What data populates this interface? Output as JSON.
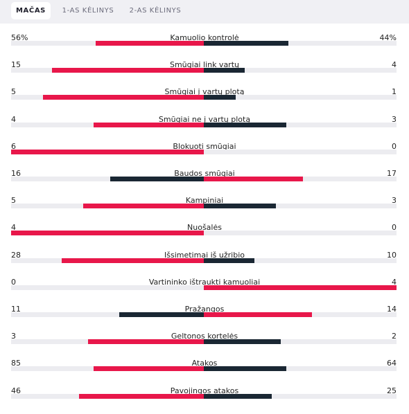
{
  "tabs": [
    "MAČAS",
    "1-AS KĖLINYS",
    "2-AS KĖLINYS"
  ],
  "active_tab": 0,
  "colors": {
    "leader": "#e8174a",
    "trailer": "#1a2733",
    "track": "#ececf0"
  },
  "stats": [
    {
      "label": "Kamuolio kontrolė",
      "home": "56%",
      "away": "44%",
      "home_val": 56,
      "away_val": 44
    },
    {
      "label": "Smūgiai link vartų",
      "home": "15",
      "away": "4",
      "home_val": 15,
      "away_val": 4
    },
    {
      "label": "Smūgiai į vartų plotą",
      "home": "5",
      "away": "1",
      "home_val": 5,
      "away_val": 1
    },
    {
      "label": "Smūgiai ne į vartų plotą",
      "home": "4",
      "away": "3",
      "home_val": 4,
      "away_val": 3
    },
    {
      "label": "Blokuoti smūgiai",
      "home": "6",
      "away": "0",
      "home_val": 6,
      "away_val": 0
    },
    {
      "label": "Baudos smūgiai",
      "home": "16",
      "away": "17",
      "home_val": 16,
      "away_val": 17
    },
    {
      "label": "Kampiniai",
      "home": "5",
      "away": "3",
      "home_val": 5,
      "away_val": 3
    },
    {
      "label": "Nuošalės",
      "home": "4",
      "away": "0",
      "home_val": 4,
      "away_val": 0
    },
    {
      "label": "Išsimetimai iš užribio",
      "home": "28",
      "away": "10",
      "home_val": 28,
      "away_val": 10
    },
    {
      "label": "Vartininko ištraukti kamuoliai",
      "home": "0",
      "away": "4",
      "home_val": 0,
      "away_val": 4
    },
    {
      "label": "Pražangos",
      "home": "11",
      "away": "14",
      "home_val": 11,
      "away_val": 14
    },
    {
      "label": "Geltonos kortelės",
      "home": "3",
      "away": "2",
      "home_val": 3,
      "away_val": 2
    },
    {
      "label": "Atakos",
      "home": "85",
      "away": "64",
      "home_val": 85,
      "away_val": 64
    },
    {
      "label": "Pavojingos atakos",
      "home": "46",
      "away": "25",
      "home_val": 46,
      "away_val": 25
    }
  ]
}
